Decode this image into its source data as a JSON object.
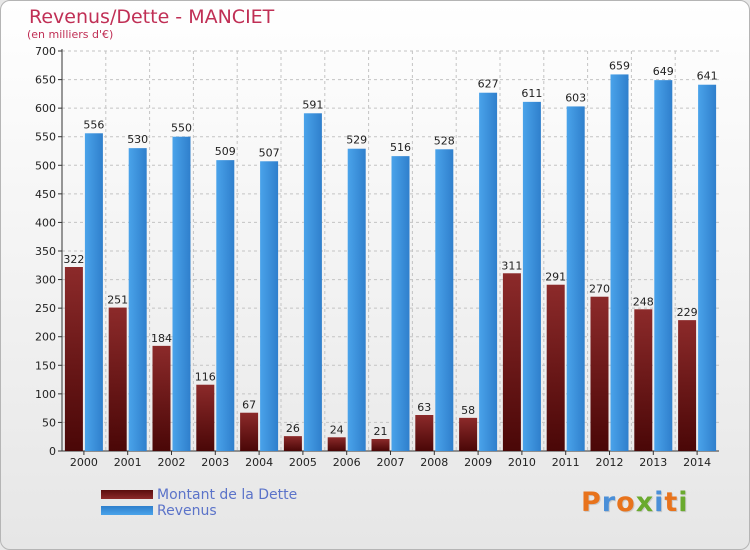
{
  "chart_data": {
    "type": "bar",
    "title": "Revenus/Dette - MANCIET",
    "subtitle": "(en milliers d'€)",
    "categories": [
      "2000",
      "2001",
      "2002",
      "2003",
      "2004",
      "2005",
      "2006",
      "2007",
      "2008",
      "2009",
      "2010",
      "2011",
      "2012",
      "2013",
      "2014"
    ],
    "series": [
      {
        "name": "Montant de la Dette",
        "color": "#7a1b1b",
        "values": [
          322,
          251,
          184,
          116,
          67,
          26,
          24,
          21,
          63,
          58,
          311,
          291,
          270,
          248,
          229
        ]
      },
      {
        "name": "Revenus",
        "color": "#3f95e0",
        "values": [
          556,
          530,
          550,
          509,
          507,
          591,
          529,
          516,
          528,
          627,
          611,
          603,
          659,
          649,
          641
        ]
      }
    ],
    "ylim": [
      0,
      700
    ],
    "yticks": [
      0,
      50,
      100,
      150,
      200,
      250,
      300,
      350,
      400,
      450,
      500,
      550,
      600,
      650,
      700
    ],
    "grid": true,
    "legend_position": "bottom-left"
  },
  "logo": {
    "letters": [
      {
        "char": "P",
        "color": "#e8731c"
      },
      {
        "char": "r",
        "color": "#4a8fd8"
      },
      {
        "char": "o",
        "color": "#e8731c"
      },
      {
        "char": "x",
        "color": "#6aaa2e"
      },
      {
        "char": "i",
        "color": "#4a8fd8"
      },
      {
        "char": "t",
        "color": "#e8731c"
      },
      {
        "char": "i",
        "color": "#6aaa2e"
      }
    ]
  }
}
